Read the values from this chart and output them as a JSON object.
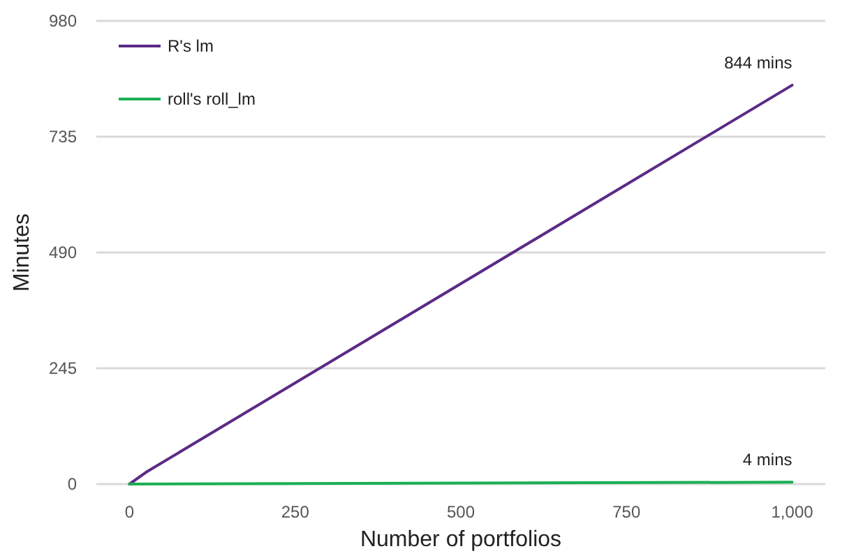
{
  "chart_data": {
    "type": "line",
    "xlabel": "Number of portfolios",
    "ylabel": "Minutes",
    "xlim": [
      -50,
      1050
    ],
    "xticks": [
      0,
      250,
      500,
      750,
      {
        "value": 1000,
        "label": "1,000"
      }
    ],
    "ylim": [
      0,
      980
    ],
    "yticks": [
      0,
      245,
      490,
      735,
      980
    ],
    "series": [
      {
        "name": "R's lm",
        "color": "#5b2a86",
        "x": [
          0,
          25,
          1000
        ],
        "values": [
          0,
          25,
          844
        ]
      },
      {
        "name": "roll's roll_lm",
        "color": "#1aaf54",
        "x": [
          0,
          1000
        ],
        "values": [
          0,
          4
        ]
      }
    ],
    "annotations": [
      {
        "text": "844 mins",
        "x": 1000,
        "y": 844
      },
      {
        "text": "4 mins",
        "x": 1000,
        "y": 4
      }
    ],
    "grid": "y",
    "legend": "top left",
    "marker": "none",
    "line_style": "solid"
  }
}
